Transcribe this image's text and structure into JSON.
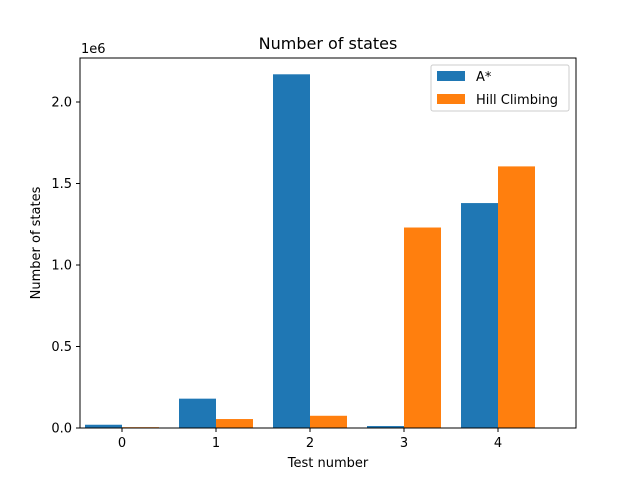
{
  "chart_data": {
    "type": "bar",
    "title": "Number of states",
    "xlabel": "Test number",
    "ylabel": "Number of states",
    "y_offset_label": "1e6",
    "categories": [
      "0",
      "1",
      "2",
      "3",
      "4"
    ],
    "series": [
      {
        "name": "A*",
        "color": "#1f77b4",
        "values": [
          20000,
          180000,
          2170000,
          12000,
          1380000
        ]
      },
      {
        "name": "Hill Climbing",
        "color": "#ff7f0e",
        "values": [
          5000,
          55000,
          75000,
          1230000,
          1605000
        ]
      }
    ],
    "ylim": [
      0,
      2270000
    ],
    "yticks": [
      0,
      500000,
      1000000,
      1500000,
      2000000
    ],
    "ytick_labels": [
      "0.0",
      "0.5",
      "1.0",
      "1.5",
      "2.0"
    ],
    "grid": false,
    "legend_position": "top-right"
  }
}
